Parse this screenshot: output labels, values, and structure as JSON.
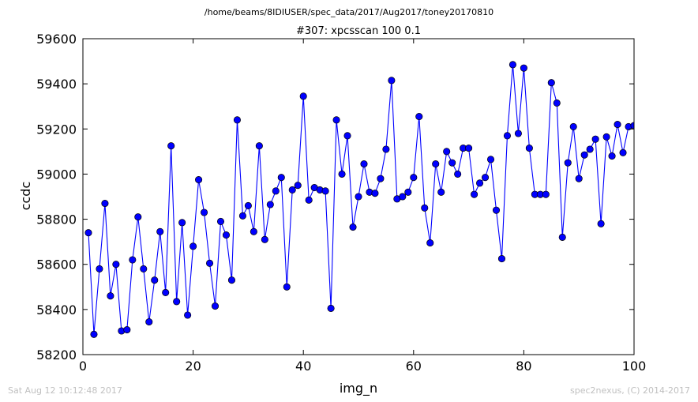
{
  "page": {
    "suptitle": "/home/beams/8IDIUSER/spec_data/2017/Aug2017/toney20170810",
    "timestamp": "Sat Aug 12 10:12:48 2017",
    "credit": "spec2nexus, (C) 2014-2017"
  },
  "chart_data": {
    "type": "line",
    "title": "#307: xpcsscan 100 0.1",
    "xlabel": "img_n",
    "ylabel": "ccdc",
    "xlim": [
      0,
      100
    ],
    "ylim": [
      58200,
      59600
    ],
    "xticks": [
      0,
      20,
      40,
      60,
      80,
      100
    ],
    "yticks": [
      58200,
      58400,
      58600,
      58800,
      59000,
      59200,
      59400,
      59600
    ],
    "grid": false,
    "marker": "circle",
    "color": "#0000ff",
    "marker_edge": "#000000",
    "series": [
      {
        "x": [
          1,
          2,
          3,
          4,
          5,
          6,
          7,
          8,
          9,
          10,
          11,
          12,
          13,
          14,
          15,
          16,
          17,
          18,
          19,
          20,
          21,
          22,
          23,
          24,
          25,
          26,
          27,
          28,
          29,
          30,
          31,
          32,
          33,
          34,
          35,
          36,
          37,
          38,
          39,
          40,
          41,
          42,
          43,
          44,
          45,
          46,
          47,
          48,
          49,
          50,
          51,
          52,
          53,
          54,
          55,
          56,
          57,
          58,
          59,
          60,
          61,
          62,
          63,
          64,
          65,
          66,
          67,
          68,
          69,
          70,
          71,
          72,
          73,
          74,
          75,
          76,
          77,
          78,
          79,
          80,
          81,
          82,
          83,
          84,
          85,
          86,
          87,
          88,
          89,
          90,
          91,
          92,
          93,
          94,
          95,
          96,
          97,
          98,
          99,
          100
        ],
        "y": [
          58740,
          58290,
          58580,
          58870,
          58460,
          58600,
          58305,
          58310,
          58620,
          58810,
          58580,
          58345,
          58530,
          58745,
          58475,
          59125,
          58435,
          58785,
          58375,
          58680,
          58975,
          58830,
          58605,
          58415,
          58790,
          58730,
          58530,
          59240,
          58815,
          58860,
          58745,
          59125,
          58710,
          58865,
          58925,
          58985,
          58500,
          58930,
          58950,
          59345,
          58885,
          58940,
          58930,
          58925,
          58405,
          59240,
          59000,
          59170,
          58765,
          58900,
          59045,
          58920,
          58915,
          58980,
          59110,
          59415,
          58890,
          58900,
          58920,
          58985,
          59255,
          58850,
          58695,
          59045,
          58920,
          59100,
          59050,
          59000,
          59115,
          59115,
          58910,
          58960,
          58985,
          59065,
          58840,
          58625,
          59170,
          59485,
          59180,
          59470,
          59115,
          58910,
          58910,
          58910,
          59405,
          59315,
          58720,
          59050,
          59210,
          58980,
          59085,
          59110,
          59155,
          58780,
          59165,
          59080,
          59220,
          59095,
          59210,
          59215
        ]
      }
    ]
  }
}
